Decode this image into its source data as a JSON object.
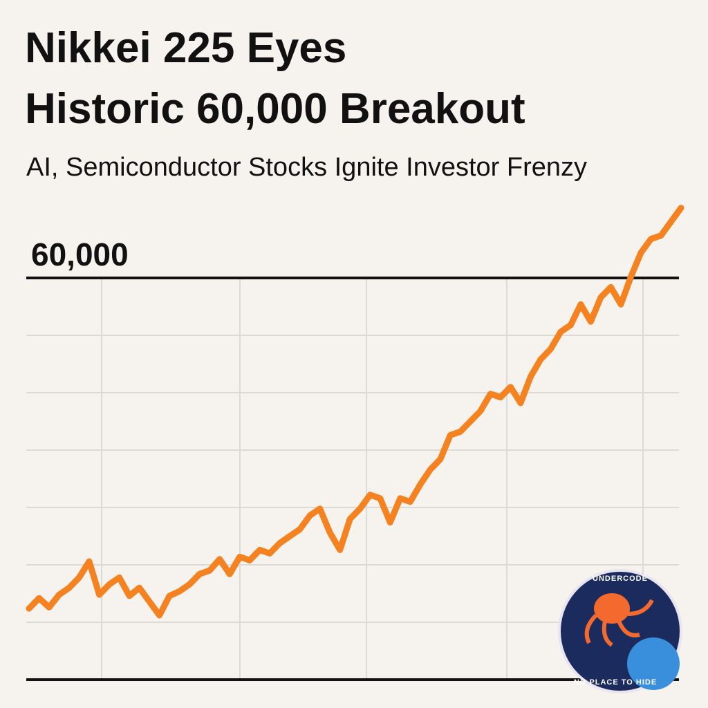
{
  "chart_data": {
    "type": "line",
    "title": [
      "Nikkei 225 Eyes",
      "Historic 60,000 Breakout"
    ],
    "subtitle": "AI, Semiconductor Stocks Ignite Investor Frenzy",
    "values": [
      31200,
      32100,
      31300,
      32400,
      33000,
      33900,
      35300,
      32400,
      33300,
      33900,
      32300,
      33000,
      31800,
      30600,
      32300,
      32700,
      33300,
      34200,
      34500,
      35500,
      34200,
      35700,
      35400,
      36300,
      36000,
      36900,
      37500,
      38100,
      39300,
      39900,
      37800,
      36300,
      39000,
      39900,
      41100,
      40800,
      38700,
      40800,
      40500,
      42000,
      43300,
      44200,
      46300,
      46600,
      47500,
      48400,
      49900,
      49600,
      50500,
      49100,
      51400,
      52900,
      53800,
      55300,
      55900,
      57700,
      56200,
      58300,
      59200,
      57700,
      60100,
      62200,
      63400,
      63700,
      64900,
      66100
    ],
    "color": "#f58220",
    "ylim": [
      25000,
      67000
    ],
    "yticks": [
      {
        "value": 25000,
        "label": null
      },
      {
        "value": 30000,
        "label": null
      },
      {
        "value": 35000,
        "label": null
      },
      {
        "value": 40000,
        "label": null
      },
      {
        "value": 45000,
        "label": null
      },
      {
        "value": 50000,
        "label": null
      },
      {
        "value": 55000,
        "label": null
      },
      {
        "value": 60000,
        "label": "60,000"
      }
    ],
    "grid": true
  },
  "logo": {
    "top": "UNDERCODE",
    "bottom": "NO PLACE TO HIDE"
  }
}
